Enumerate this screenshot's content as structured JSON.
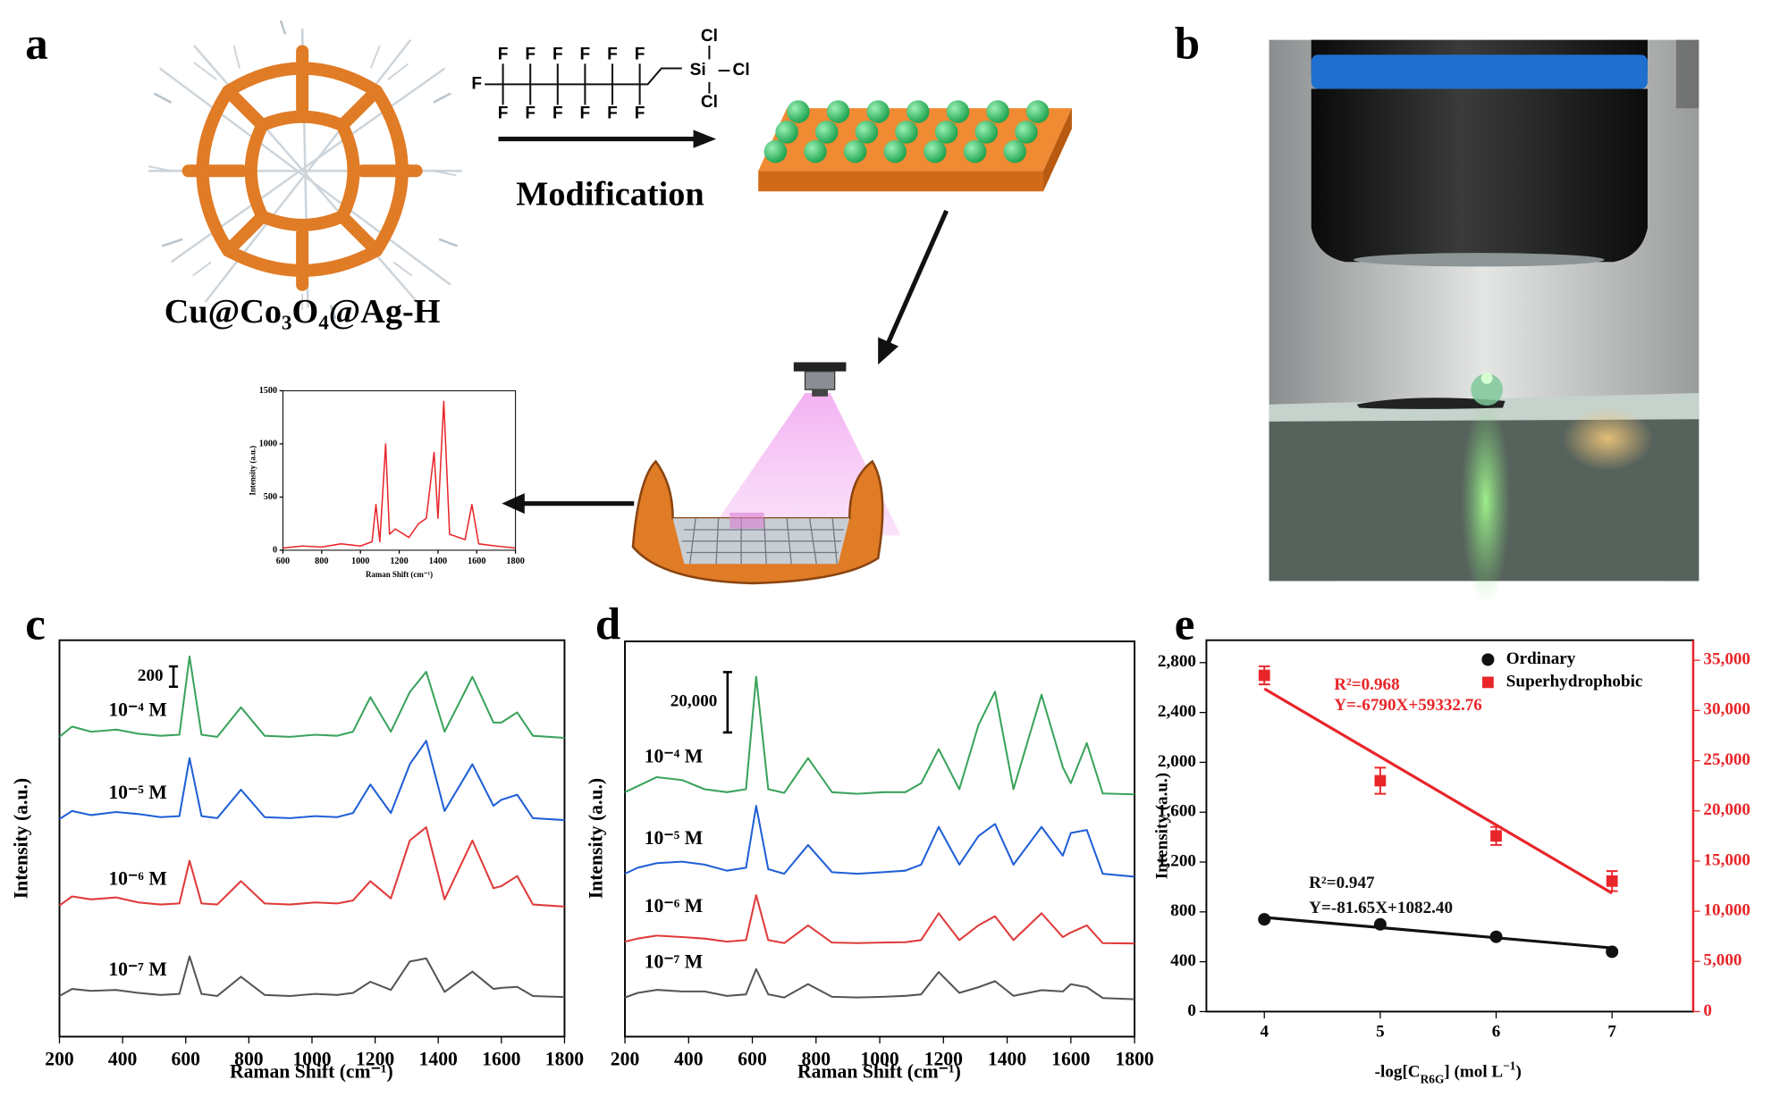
{
  "panel_labels": [
    "a",
    "b",
    "c",
    "d",
    "e"
  ],
  "diagram": {
    "atoms": [
      "F",
      "F",
      "F",
      "F",
      "F",
      "F",
      "F",
      "F",
      "F",
      "F",
      "F",
      "F",
      "F",
      "Si",
      "Cl",
      "Cl",
      "Cl"
    ],
    "step": "Modification",
    "material": "Cu@Co₃O₄@Ag-H"
  },
  "chart_data": [
    {
      "type": "line",
      "x_label": "Raman Shift (cm⁻¹)",
      "y_label": "Intensity (a.u.)",
      "x": [
        600,
        700,
        800,
        900,
        1000,
        1060,
        1080,
        1100,
        1130,
        1150,
        1180,
        1250,
        1300,
        1340,
        1380,
        1400,
        1430,
        1460,
        1540,
        1575,
        1610,
        1700,
        1800
      ],
      "series": [
        {
          "color": "#e8262a",
          "values": [
            20,
            40,
            30,
            60,
            40,
            80,
            430,
            80,
            1000,
            150,
            200,
            120,
            250,
            300,
            920,
            300,
            1400,
            150,
            100,
            430,
            60,
            40,
            20
          ]
        }
      ],
      "xlim": [
        600,
        1800
      ],
      "xticks": [
        600,
        800,
        1000,
        1200,
        1400,
        1600,
        1800
      ],
      "ylim": [
        0,
        1500
      ],
      "yticks": [
        0,
        500,
        1000,
        1500
      ]
    },
    {
      "type": "line",
      "x_label": "Raman Shift (cm⁻¹)",
      "y_label": "Intensity (a.u.)",
      "x": [
        200,
        240,
        300,
        380,
        450,
        520,
        580,
        612,
        650,
        700,
        775,
        850,
        930,
        1010,
        1080,
        1130,
        1185,
        1250,
        1310,
        1362,
        1420,
        1508,
        1575,
        1600,
        1650,
        1700,
        1800
      ],
      "series": [
        {
          "name": "10⁻⁴ M",
          "color": "#3aa35b",
          "values": [
            2950,
            3050,
            3000,
            3020,
            2980,
            2960,
            2970,
            3740,
            2970,
            2950,
            3240,
            2960,
            2950,
            2970,
            2960,
            3000,
            3340,
            3000,
            3390,
            3590,
            3000,
            3540,
            3090,
            3090,
            3190,
            2960,
            2940
          ]
        },
        {
          "name": "10⁻⁵ M",
          "color": "#1f5fd6",
          "values": [
            2140,
            2220,
            2180,
            2210,
            2190,
            2160,
            2170,
            2740,
            2170,
            2150,
            2430,
            2160,
            2150,
            2170,
            2160,
            2200,
            2480,
            2200,
            2680,
            2910,
            2220,
            2680,
            2270,
            2330,
            2380,
            2150,
            2130
          ]
        },
        {
          "name": "10⁻⁶ M",
          "color": "#e03a3a",
          "values": [
            1290,
            1380,
            1350,
            1370,
            1320,
            1300,
            1310,
            1730,
            1310,
            1300,
            1530,
            1310,
            1300,
            1320,
            1310,
            1340,
            1530,
            1360,
            1930,
            2060,
            1350,
            1930,
            1460,
            1480,
            1580,
            1300,
            1280
          ]
        },
        {
          "name": "10⁻⁷ M",
          "color": "#555555",
          "values": [
            400,
            470,
            450,
            460,
            430,
            410,
            420,
            790,
            420,
            400,
            590,
            410,
            400,
            420,
            410,
            430,
            540,
            460,
            740,
            770,
            440,
            640,
            470,
            480,
            490,
            400,
            390
          ]
        }
      ],
      "scale_bar": 200,
      "xlim": [
        200,
        1800
      ],
      "xticks": [
        200,
        400,
        600,
        800,
        1000,
        1200,
        1400,
        1600,
        1800
      ],
      "ylim": [
        0,
        3900
      ]
    },
    {
      "type": "line",
      "x_label": "Raman Shift (cm⁻¹)",
      "y_label": "Intensity (a.u.)",
      "x": [
        200,
        240,
        300,
        380,
        450,
        520,
        580,
        612,
        650,
        700,
        775,
        850,
        930,
        1010,
        1080,
        1130,
        1185,
        1250,
        1310,
        1362,
        1420,
        1508,
        1575,
        1600,
        1650,
        1700,
        1800
      ],
      "series": [
        {
          "name": "10⁻⁴ M",
          "color": "#3aa35b",
          "values": [
            81000,
            83000,
            86000,
            85000,
            82000,
            81000,
            82000,
            119300,
            82000,
            80800,
            92300,
            81000,
            80500,
            81000,
            81000,
            84000,
            95300,
            82000,
            103300,
            114300,
            82000,
            113300,
            89300,
            84000,
            97300,
            80600,
            80300
          ]
        },
        {
          "name": "10⁻⁵ M",
          "color": "#1f5fd6",
          "values": [
            54000,
            56000,
            57500,
            58000,
            57000,
            55000,
            56000,
            76500,
            55500,
            54000,
            63500,
            54500,
            54000,
            54500,
            55000,
            57000,
            69500,
            57000,
            66500,
            70500,
            57000,
            69500,
            60000,
            67500,
            68500,
            54000,
            53000
          ]
        },
        {
          "name": "10⁻⁶ M",
          "color": "#e03a3a",
          "values": [
            31500,
            32500,
            33500,
            33000,
            32500,
            31500,
            32000,
            46900,
            32000,
            31000,
            36900,
            31200,
            31000,
            31200,
            31300,
            32000,
            40900,
            32000,
            36900,
            39900,
            32000,
            40900,
            33000,
            34500,
            36900,
            31000,
            30900
          ]
        },
        {
          "name": "10⁻⁷ M",
          "color": "#555555",
          "values": [
            13000,
            14500,
            15500,
            15000,
            15000,
            13500,
            14000,
            22400,
            14000,
            13000,
            17400,
            13200,
            13000,
            13200,
            13500,
            14000,
            21400,
            14500,
            16400,
            18400,
            13500,
            15400,
            15000,
            17400,
            16400,
            12800,
            12400
          ]
        }
      ],
      "scale_bar": {
        "value": 20000,
        "label": "20,000"
      },
      "xlim": [
        200,
        1800
      ],
      "xticks": [
        200,
        400,
        600,
        800,
        1000,
        1200,
        1400,
        1600,
        1800
      ],
      "ylim": [
        0,
        131000
      ]
    },
    {
      "type": "scatter",
      "x_label": [
        "-log[C",
        "R6G",
        "] (mol L",
        "−1",
        ")"
      ],
      "y_label": "Intensity (a.u.)",
      "x": [
        4,
        5,
        6,
        7
      ],
      "series": [
        {
          "name": "Ordinary",
          "color": "#111111",
          "marker": "circle",
          "axis": "y",
          "values": [
            740,
            700,
            600,
            480
          ]
        },
        {
          "name": "Superhydrophobic",
          "color": "#e8262a",
          "marker": "square",
          "axis": "y2",
          "values": [
            33500,
            23000,
            17500,
            13000
          ],
          "errors": [
            900,
            1300,
            900,
            1000
          ]
        }
      ],
      "fits": [
        {
          "color": "#111111",
          "axis": "y",
          "x": [
            4,
            7
          ],
          "values": [
            755.8,
            510.8
          ]
        },
        {
          "color": "#e8262a",
          "axis": "y2",
          "x": [
            4,
            7
          ],
          "values": [
            32172,
            11802
          ]
        }
      ],
      "annotations": [
        {
          "text": "R²=0.968",
          "color": "#e8262a"
        },
        {
          "text": "Y=-6790X+59332.76",
          "color": "#e8262a"
        },
        {
          "text": "R²=0.947",
          "color": "#111111"
        },
        {
          "text": "Y=-81.65X+1082.40",
          "color": "#111111"
        }
      ],
      "xlim": [
        3.5,
        7.7
      ],
      "xticks": [
        4,
        5,
        6,
        7
      ],
      "ylim": [
        0,
        2980
      ],
      "yticks": [
        0,
        400,
        800,
        {
          "value": 1200,
          "label": "1,200"
        },
        {
          "value": 1600,
          "label": "1,600"
        },
        {
          "value": 2000,
          "label": "2,000"
        },
        {
          "value": 2400,
          "label": "2,400"
        },
        {
          "value": 2800,
          "label": "2,800"
        }
      ],
      "y2lim": [
        0,
        37000
      ],
      "y2ticks": [
        0,
        {
          "value": 5000,
          "label": "5,000"
        },
        {
          "value": 10000,
          "label": "10,000"
        },
        {
          "value": 15000,
          "label": "15,000"
        },
        {
          "value": 20000,
          "label": "20,000"
        },
        {
          "value": 25000,
          "label": "25,000"
        },
        {
          "value": 30000,
          "label": "30,000"
        },
        {
          "value": 35000,
          "label": "35,000"
        }
      ],
      "y2color": "#e8262a",
      "legend": "upper right"
    }
  ]
}
